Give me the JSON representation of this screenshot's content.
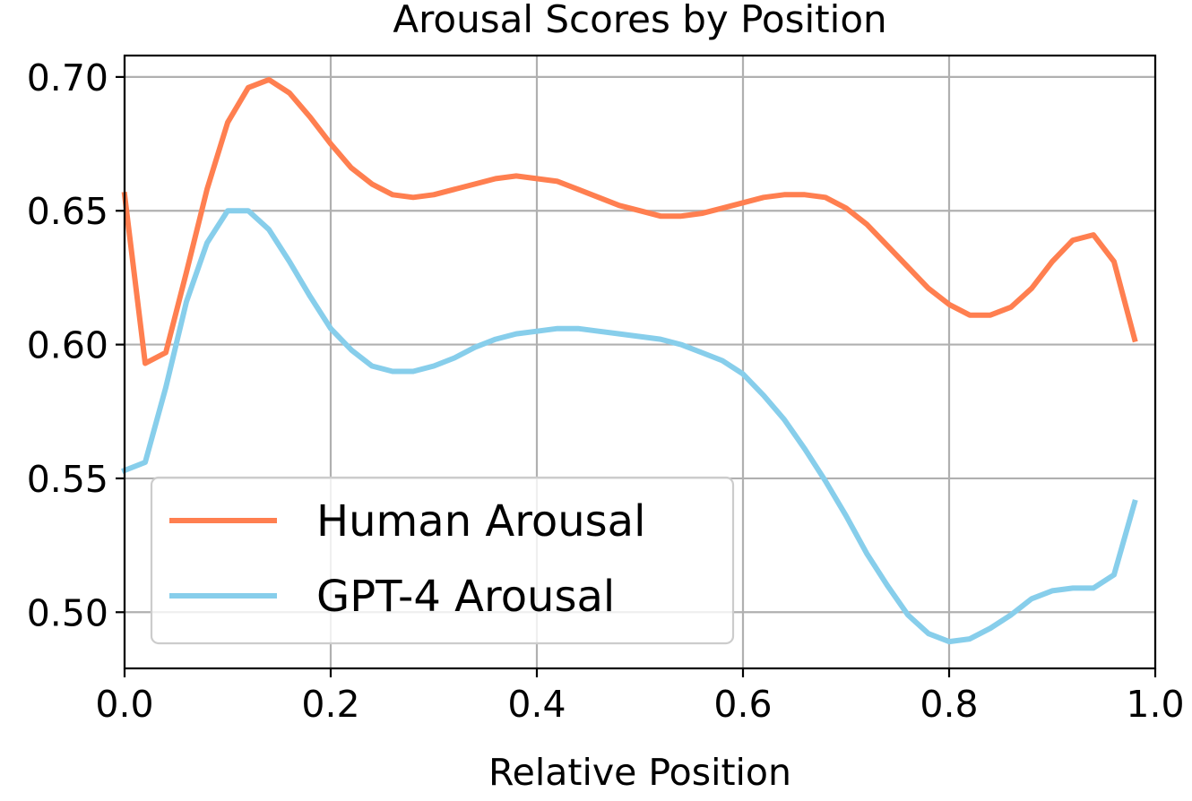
{
  "chart_data": {
    "type": "line",
    "title": "Arousal Scores by Position",
    "xlabel": "Relative Position",
    "ylabel": "",
    "xlim": [
      0.0,
      1.0
    ],
    "ylim": [
      0.479,
      0.708
    ],
    "x_ticks": [
      "0.0",
      "0.2",
      "0.4",
      "0.6",
      "0.8",
      "1.0"
    ],
    "y_ticks": [
      "0.50",
      "0.55",
      "0.60",
      "0.65",
      "0.70"
    ],
    "grid": true,
    "legend_position": "lower-left",
    "x": [
      0.0,
      0.02,
      0.04,
      0.06,
      0.08,
      0.1,
      0.12,
      0.14,
      0.16,
      0.18,
      0.2,
      0.22,
      0.24,
      0.26,
      0.28,
      0.3,
      0.32,
      0.34,
      0.36,
      0.38,
      0.4,
      0.42,
      0.44,
      0.46,
      0.48,
      0.5,
      0.52,
      0.54,
      0.56,
      0.58,
      0.6,
      0.62,
      0.64,
      0.66,
      0.68,
      0.7,
      0.72,
      0.74,
      0.76,
      0.78,
      0.8,
      0.82,
      0.84,
      0.86,
      0.88,
      0.9,
      0.92,
      0.94,
      0.96,
      0.98
    ],
    "series": [
      {
        "name": "Human Arousal",
        "color": "#ff7f50",
        "values": [
          0.656,
          0.593,
          0.597,
          0.627,
          0.658,
          0.683,
          0.696,
          0.699,
          0.694,
          0.685,
          0.675,
          0.666,
          0.66,
          0.656,
          0.655,
          0.656,
          0.658,
          0.66,
          0.662,
          0.663,
          0.662,
          0.661,
          0.658,
          0.655,
          0.652,
          0.65,
          0.648,
          0.648,
          0.649,
          0.651,
          0.653,
          0.655,
          0.656,
          0.656,
          0.655,
          0.651,
          0.645,
          0.637,
          0.629,
          0.621,
          0.615,
          0.611,
          0.611,
          0.614,
          0.621,
          0.631,
          0.639,
          0.641,
          0.631,
          0.602
        ]
      },
      {
        "name": "GPT-4 Arousal",
        "color": "#87ceeb",
        "values": [
          0.553,
          0.556,
          0.584,
          0.616,
          0.638,
          0.65,
          0.65,
          0.643,
          0.631,
          0.618,
          0.606,
          0.598,
          0.592,
          0.59,
          0.59,
          0.592,
          0.595,
          0.599,
          0.602,
          0.604,
          0.605,
          0.606,
          0.606,
          0.605,
          0.604,
          0.603,
          0.602,
          0.6,
          0.597,
          0.594,
          0.589,
          0.581,
          0.572,
          0.561,
          0.549,
          0.536,
          0.522,
          0.51,
          0.499,
          0.492,
          0.489,
          0.49,
          0.494,
          0.499,
          0.505,
          0.508,
          0.509,
          0.509,
          0.514,
          0.541
        ]
      }
    ]
  }
}
